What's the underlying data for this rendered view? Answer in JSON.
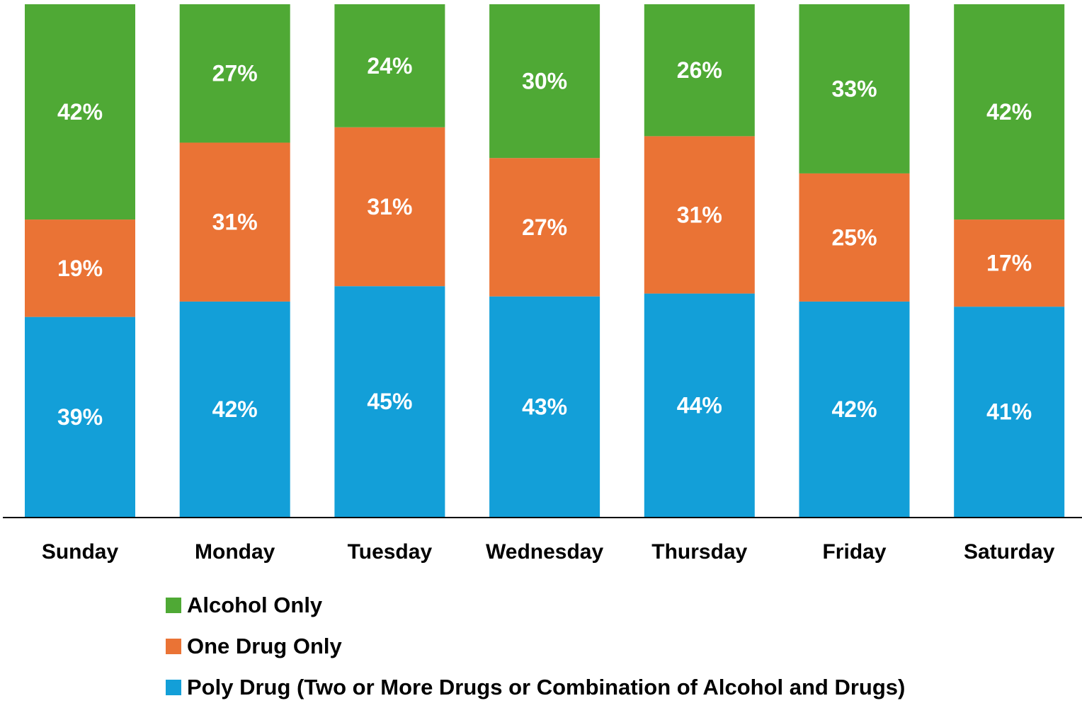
{
  "chart_data": {
    "type": "bar",
    "stacked": true,
    "percent_stacked": true,
    "categories": [
      "Sunday",
      "Monday",
      "Tuesday",
      "Wednesday",
      "Thursday",
      "Friday",
      "Saturday"
    ],
    "series": [
      {
        "name": "Poly Drug (Two or More Drugs or Combination of Alcohol and Drugs)",
        "color": "#139FD8",
        "values": [
          39,
          42,
          45,
          43,
          44,
          42,
          41
        ]
      },
      {
        "name": "One Drug Only",
        "color": "#EA7335",
        "values": [
          19,
          31,
          31,
          27,
          31,
          25,
          17
        ]
      },
      {
        "name": "Alcohol Only",
        "color": "#4FA935",
        "values": [
          42,
          27,
          24,
          30,
          26,
          33,
          42
        ]
      }
    ],
    "data_labels": {
      "Poly Drug (Two or More Drugs or Combination of Alcohol and Drugs)": [
        "39%",
        "42%",
        "45%",
        "43%",
        "44%",
        "42%",
        "41%"
      ],
      "One Drug Only": [
        "19%",
        "31%",
        "31%",
        "27%",
        "31%",
        "25%",
        "17%"
      ],
      "Alcohol Only": [
        "42%",
        "27%",
        "24%",
        "30%",
        "26%",
        "33%",
        "42%"
      ]
    },
    "ylim": [
      0,
      100
    ],
    "grid": false,
    "legend_position": "bottom"
  },
  "legend": {
    "items": [
      {
        "label": "Alcohol Only",
        "color": "#4FA935"
      },
      {
        "label": "One Drug Only",
        "color": "#EA7335"
      },
      {
        "label": "Poly Drug (Two or More Drugs or Combination of Alcohol and Drugs)",
        "color": "#139FD8"
      }
    ]
  }
}
